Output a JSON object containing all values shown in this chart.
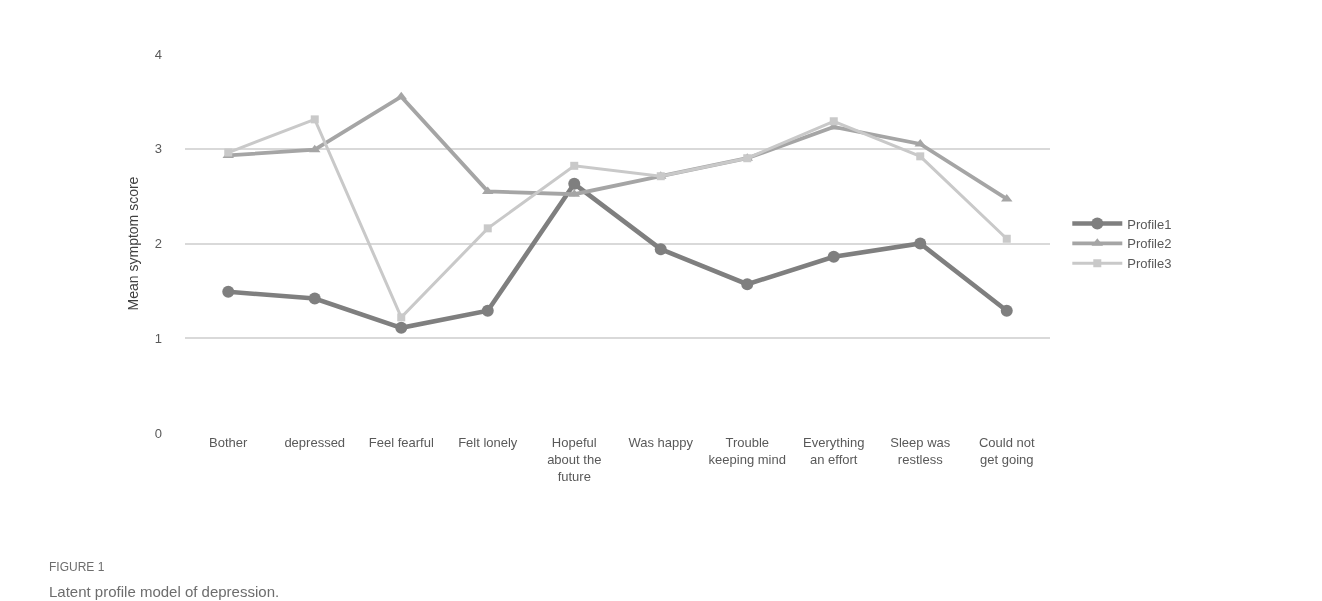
{
  "chart_data": {
    "type": "line",
    "ylabel": "Mean symptom score",
    "categories": [
      "Bother",
      "depressed",
      "Feel fearful",
      "Felt lonely",
      "Hopeful about the future",
      "Was happy",
      "Trouble keeping mind",
      "Everything an effort",
      "Sleep was restless",
      "Could not get going"
    ],
    "series": [
      {
        "name": "Profile1",
        "color": "#7f7f7f",
        "marker": "circle",
        "values": [
          1.49,
          1.42,
          1.11,
          1.29,
          2.63,
          1.94,
          1.57,
          1.86,
          2.0,
          1.29
        ]
      },
      {
        "name": "Profile2",
        "color": "#a5a5a5",
        "marker": "triangle",
        "values": [
          2.93,
          2.99,
          3.55,
          2.55,
          2.52,
          2.71,
          2.9,
          3.23,
          3.05,
          2.47
        ]
      },
      {
        "name": "Profile3",
        "color": "#c9c9c9",
        "marker": "square",
        "values": [
          2.96,
          3.31,
          1.22,
          2.16,
          2.82,
          2.71,
          2.9,
          3.29,
          2.92,
          2.05
        ]
      }
    ],
    "ylim": [
      0,
      4
    ],
    "yticks": [
      0,
      1,
      2,
      3,
      4
    ],
    "grid": "y",
    "legend": "right",
    "line_style": "solid",
    "annotations": [
      "FIGURE 1",
      "Latent profile model of depression."
    ]
  }
}
